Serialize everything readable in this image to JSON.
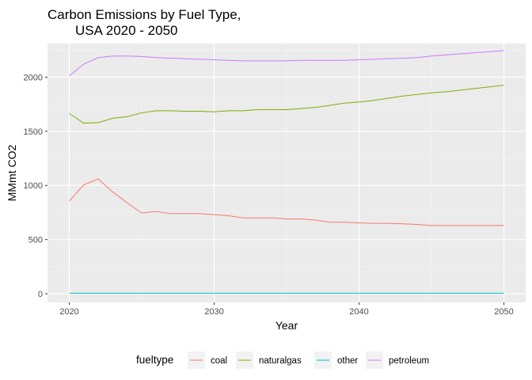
{
  "chart_data": {
    "type": "line",
    "title": [
      "Carbon Emissions by Fuel Type,",
      "USA 2020 - 2050"
    ],
    "xlabel": "Year",
    "ylabel": "MMmt CO2",
    "xlim": [
      2018.5,
      2051.5
    ],
    "ylim": [
      -80,
      2310
    ],
    "x_ticks": [
      2020,
      2030,
      2040,
      2050
    ],
    "y_ticks": [
      0,
      500,
      1000,
      1500,
      2000
    ],
    "grid": true,
    "legend": {
      "title": "fueltype",
      "position": "bottom"
    },
    "x": [
      2020,
      2021,
      2022,
      2023,
      2024,
      2025,
      2026,
      2027,
      2028,
      2029,
      2030,
      2031,
      2032,
      2033,
      2034,
      2035,
      2036,
      2037,
      2038,
      2039,
      2040,
      2041,
      2042,
      2043,
      2044,
      2045,
      2046,
      2047,
      2048,
      2049,
      2050
    ],
    "series": [
      {
        "name": "coal",
        "color": "#F8766D",
        "values": [
          855,
          1005,
          1060,
          940,
          840,
          745,
          760,
          740,
          740,
          740,
          730,
          720,
          700,
          700,
          700,
          690,
          690,
          680,
          660,
          660,
          655,
          650,
          650,
          645,
          640,
          630,
          630,
          630,
          630,
          630,
          630
        ]
      },
      {
        "name": "naturalgas",
        "color": "#7CAE00",
        "values": [
          1665,
          1575,
          1580,
          1620,
          1635,
          1670,
          1690,
          1690,
          1685,
          1685,
          1680,
          1690,
          1690,
          1700,
          1700,
          1700,
          1710,
          1720,
          1740,
          1760,
          1770,
          1785,
          1805,
          1825,
          1840,
          1855,
          1865,
          1880,
          1895,
          1910,
          1925
        ]
      },
      {
        "name": "other",
        "color": "#00BFC4",
        "values": [
          5,
          5,
          5,
          5,
          5,
          5,
          5,
          5,
          5,
          5,
          5,
          5,
          5,
          5,
          5,
          5,
          5,
          5,
          5,
          5,
          5,
          5,
          5,
          5,
          5,
          5,
          5,
          5,
          5,
          5,
          5
        ]
      },
      {
        "name": "petroleum",
        "color": "#C77CFF",
        "values": [
          2010,
          2120,
          2180,
          2195,
          2195,
          2190,
          2180,
          2175,
          2170,
          2165,
          2160,
          2155,
          2150,
          2150,
          2150,
          2150,
          2155,
          2155,
          2155,
          2155,
          2160,
          2165,
          2170,
          2175,
          2180,
          2195,
          2205,
          2215,
          2225,
          2235,
          2245
        ]
      }
    ]
  }
}
